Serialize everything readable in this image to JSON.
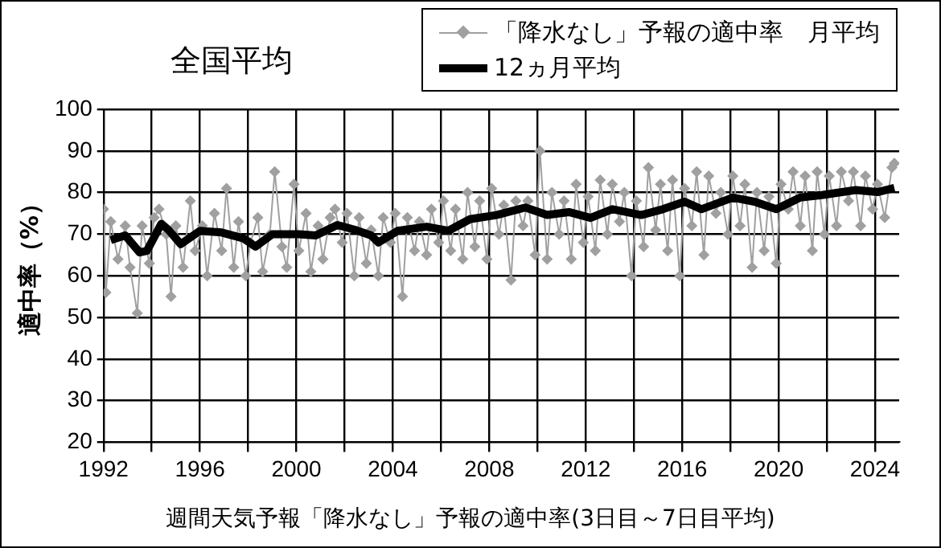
{
  "chart_data": {
    "type": "line",
    "title": "全国平均",
    "ylabel": "適中率（%）",
    "annotations": [
      "週間天気予報「降水なし」予報の適中率(3日目～7日目平均)"
    ],
    "xlim": [
      1992,
      2025
    ],
    "xticks": [
      1992,
      {
        "value": 1994,
        "label": null
      },
      1996,
      {
        "value": 1998,
        "label": null
      },
      2000,
      {
        "value": 2002,
        "label": null
      },
      2004,
      {
        "value": 2006,
        "label": null
      },
      2008,
      {
        "value": 2010,
        "label": null
      },
      2012,
      {
        "value": 2014,
        "label": null
      },
      2016,
      {
        "value": 2018,
        "label": null
      },
      2020,
      {
        "value": 2022,
        "label": null
      },
      2024
    ],
    "ylim": [
      20,
      100
    ],
    "yticks": [
      20,
      30,
      40,
      50,
      60,
      70,
      80,
      90,
      100
    ],
    "grid": true,
    "legend": "top right",
    "series": [
      {
        "name": "「降水なし」予報の適中率　月平均",
        "color": "#a0a0a0",
        "marker": "diamond",
        "x": [
          1992.0,
          1992.1,
          1992.3,
          1992.6,
          1992.9,
          1993.1,
          1993.4,
          1993.6,
          1993.9,
          1994.1,
          1994.3,
          1994.6,
          1994.8,
          1995.0,
          1995.3,
          1995.6,
          1995.8,
          1996.1,
          1996.3,
          1996.6,
          1996.9,
          1997.1,
          1997.4,
          1997.6,
          1997.9,
          1998.1,
          1998.4,
          1998.6,
          1998.9,
          1999.1,
          1999.4,
          1999.6,
          1999.9,
          2000.1,
          2000.4,
          2000.6,
          2000.9,
          2001.1,
          2001.4,
          2001.6,
          2001.9,
          2002.1,
          2002.4,
          2002.6,
          2002.9,
          2003.1,
          2003.4,
          2003.6,
          2003.9,
          2004.1,
          2004.4,
          2004.6,
          2004.9,
          2005.1,
          2005.4,
          2005.6,
          2005.9,
          2006.1,
          2006.4,
          2006.6,
          2006.9,
          2007.1,
          2007.4,
          2007.6,
          2007.9,
          2008.1,
          2008.4,
          2008.6,
          2008.9,
          2009.1,
          2009.4,
          2009.6,
          2009.9,
          2010.1,
          2010.4,
          2010.6,
          2010.9,
          2011.1,
          2011.4,
          2011.6,
          2011.9,
          2012.1,
          2012.4,
          2012.6,
          2012.9,
          2013.1,
          2013.4,
          2013.6,
          2013.9,
          2014.1,
          2014.4,
          2014.6,
          2014.9,
          2015.1,
          2015.4,
          2015.6,
          2015.9,
          2016.1,
          2016.4,
          2016.6,
          2016.9,
          2017.1,
          2017.4,
          2017.6,
          2017.9,
          2018.1,
          2018.4,
          2018.6,
          2018.9,
          2019.1,
          2019.4,
          2019.6,
          2019.9,
          2020.1,
          2020.4,
          2020.6,
          2020.9,
          2021.1,
          2021.4,
          2021.6,
          2021.9,
          2022.1,
          2022.4,
          2022.6,
          2022.9,
          2023.1,
          2023.4,
          2023.6,
          2023.9,
          2024.1,
          2024.4,
          2024.7,
          2024.8
        ],
        "values": [
          76,
          56,
          73,
          64,
          72,
          62,
          51,
          72,
          63,
          74,
          76,
          70,
          55,
          72,
          62,
          78,
          66,
          72,
          60,
          75,
          66,
          81,
          62,
          73,
          60,
          68,
          74,
          61,
          70,
          85,
          67,
          62,
          82,
          66,
          75,
          61,
          72,
          64,
          74,
          76,
          68,
          75,
          60,
          74,
          63,
          71,
          60,
          74,
          68,
          75,
          55,
          74,
          66,
          73,
          65,
          76,
          68,
          78,
          66,
          76,
          64,
          80,
          67,
          78,
          64,
          81,
          70,
          77,
          59,
          78,
          72,
          78,
          65,
          90,
          64,
          80,
          70,
          78,
          64,
          82,
          68,
          79,
          66,
          83,
          70,
          82,
          73,
          80,
          60,
          78,
          67,
          86,
          71,
          82,
          66,
          83,
          60,
          81,
          72,
          85,
          65,
          84,
          75,
          80,
          70,
          84,
          72,
          82,
          62,
          80,
          66,
          79,
          63,
          82,
          76,
          85,
          72,
          84,
          66,
          85,
          70,
          84,
          72,
          85,
          78,
          85,
          72,
          84,
          76,
          82,
          74,
          86,
          87
        ]
      },
      {
        "name": "12ヵ月平均",
        "color": "#000000",
        "marker": "none",
        "x": [
          1992.3,
          1992.9,
          1993.5,
          1993.8,
          1994.4,
          1994.7,
          1995.2,
          1996.0,
          1996.9,
          1997.8,
          1998.3,
          1999.0,
          2000.1,
          2000.8,
          2001.7,
          2002.4,
          2003.1,
          2003.4,
          2004.2,
          2005.4,
          2006.3,
          2007.2,
          2008.3,
          2009.5,
          2010.4,
          2011.3,
          2012.2,
          2013.1,
          2014.3,
          2015.2,
          2016.1,
          2016.8,
          2018.1,
          2019.0,
          2019.9,
          2020.9,
          2021.8,
          2023.2,
          2024.1,
          2024.8
        ],
        "values": [
          68.6,
          69.7,
          65.6,
          66,
          72.5,
          71,
          67.6,
          70.8,
          70.4,
          69,
          67,
          70,
          70,
          69.7,
          72.2,
          71.1,
          69.7,
          68,
          70.8,
          71.8,
          70.8,
          73.6,
          74.6,
          76.4,
          74.6,
          75.3,
          73.9,
          76,
          74.6,
          76,
          77.8,
          76,
          78.8,
          77.8,
          76,
          78.8,
          79.4,
          80.6,
          80.1,
          81.1
        ]
      }
    ]
  }
}
